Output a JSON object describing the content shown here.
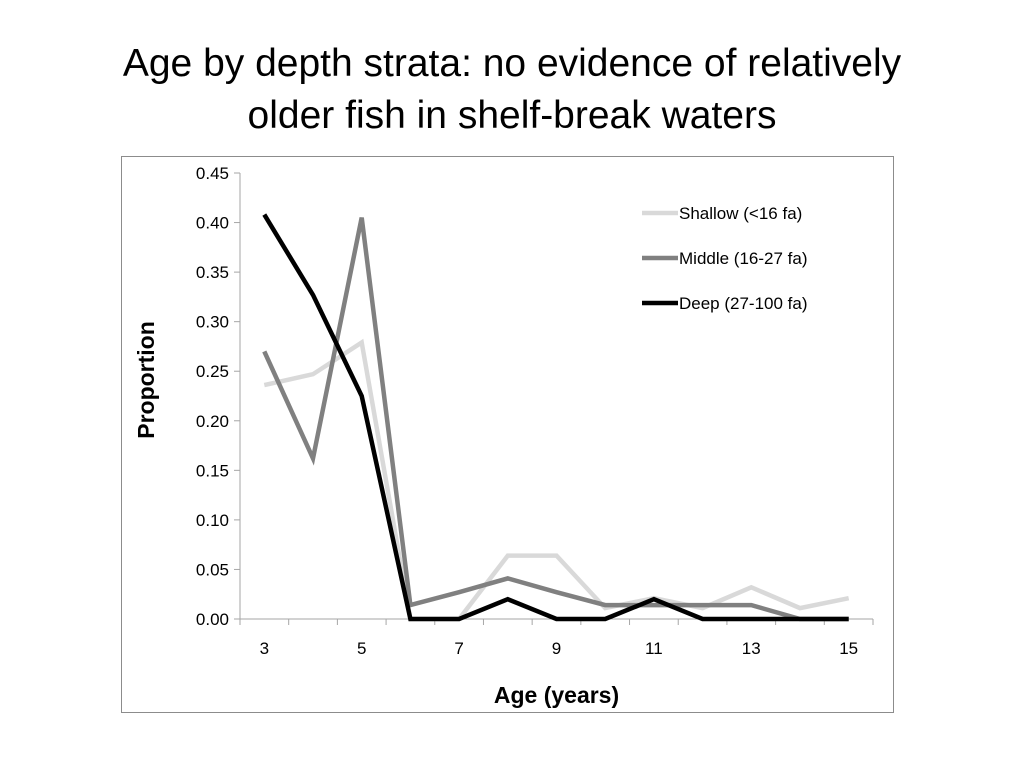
{
  "title_lines": [
    "Age by depth strata: no evidence of relatively",
    "older fish in shelf-break waters"
  ],
  "colors": {
    "shallow": "#d9d9d9",
    "middle": "#808080",
    "deep": "#000000",
    "axis": "#a6a6a6",
    "frame": "#8c8c8c"
  },
  "chart_data": {
    "type": "line",
    "title": "",
    "xlabel": "Age (years)",
    "ylabel": "Proportion",
    "x": [
      3,
      4,
      5,
      6,
      7,
      8,
      9,
      10,
      11,
      12,
      13,
      14,
      15
    ],
    "xlim": [
      2.5,
      15.5
    ],
    "ylim": [
      0,
      0.45
    ],
    "x_tick_labels": [
      "3",
      "5",
      "7",
      "9",
      "11",
      "13",
      "15"
    ],
    "x_tick_values": [
      3,
      5,
      7,
      9,
      11,
      13,
      15
    ],
    "y_tick_labels": [
      "0.00",
      "0.05",
      "0.10",
      "0.15",
      "0.20",
      "0.25",
      "0.30",
      "0.35",
      "0.40",
      "0.45"
    ],
    "y_tick_values": [
      0,
      0.05,
      0.1,
      0.15,
      0.2,
      0.25,
      0.3,
      0.35,
      0.4,
      0.45
    ],
    "grid": false,
    "legend_position": "top-right",
    "series": [
      {
        "name": "Shallow (<16 fa)",
        "color_key": "shallow",
        "values": [
          0.236,
          0.247,
          0.279,
          0.0,
          0.0,
          0.064,
          0.064,
          0.011,
          0.021,
          0.011,
          0.032,
          0.011,
          0.021
        ]
      },
      {
        "name": "Middle (16-27 fa)",
        "color_key": "middle",
        "values": [
          0.27,
          0.162,
          0.405,
          0.014,
          0.027,
          0.041,
          0.027,
          0.014,
          0.014,
          0.014,
          0.014,
          0.0,
          0.0
        ]
      },
      {
        "name": "Deep (27-100 fa)",
        "color_key": "deep",
        "values": [
          0.408,
          0.327,
          0.225,
          0.0,
          0.0,
          0.02,
          0.0,
          0.0,
          0.02,
          0.0,
          0.0,
          0.0,
          0.0
        ]
      }
    ]
  }
}
